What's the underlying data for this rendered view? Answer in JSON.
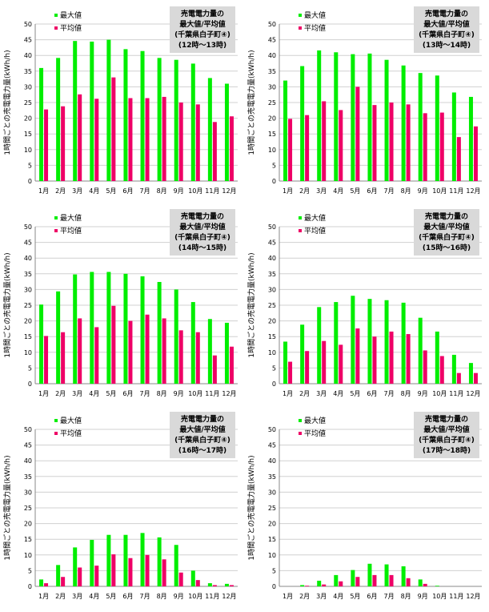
{
  "colors": {
    "max": "#00ee00",
    "avg": "#ee0066",
    "title_box": "#d9d9d9",
    "grid": "#d0d0d0",
    "axis": "#888888"
  },
  "chart_data": [
    {
      "type": "bar",
      "title_lines": [
        "売電電力量の",
        "最大値/平均値",
        "(千葉県白子町④)",
        "(12時～13時)"
      ],
      "ylabel": "1時間ごとの売電電力量(kWh/h)",
      "yticks": [
        "0",
        "5",
        "10",
        "15",
        "20",
        "25",
        "30",
        "35",
        "40",
        "45",
        "50"
      ],
      "ylim": [
        0,
        50
      ],
      "categories": [
        "1月",
        "2月",
        "3月",
        "4月",
        "5月",
        "6月",
        "7月",
        "8月",
        "9月",
        "10月",
        "11月",
        "12月"
      ],
      "series": [
        {
          "name": "最大値",
          "values": [
            36.0,
            39.2,
            44.6,
            44.4,
            45.0,
            42.0,
            41.4,
            39.2,
            38.6,
            37.4,
            32.8,
            31.0
          ]
        },
        {
          "name": "平均値",
          "values": [
            22.8,
            23.8,
            27.6,
            26.2,
            33.0,
            26.4,
            26.4,
            26.8,
            25.0,
            24.4,
            18.8,
            20.6
          ]
        }
      ]
    },
    {
      "type": "bar",
      "title_lines": [
        "売電電力量の",
        "最大値/平均値",
        "(千葉県白子町④)",
        "(13時～14時)"
      ],
      "ylabel": "1時間ごとの売電電力量(kWh/h)",
      "yticks": [
        "0",
        "5",
        "10",
        "15",
        "20",
        "25",
        "30",
        "35",
        "40",
        "45",
        "50"
      ],
      "ylim": [
        0,
        50
      ],
      "categories": [
        "1月",
        "2月",
        "3月",
        "4月",
        "5月",
        "6月",
        "7月",
        "8月",
        "9月",
        "10月",
        "11月",
        "12月"
      ],
      "series": [
        {
          "name": "最大値",
          "values": [
            32.0,
            36.6,
            41.6,
            41.0,
            40.4,
            40.6,
            38.6,
            36.8,
            34.4,
            33.6,
            28.2,
            26.8
          ]
        },
        {
          "name": "平均値",
          "values": [
            19.8,
            21.0,
            25.4,
            22.6,
            30.0,
            24.2,
            25.0,
            24.4,
            21.6,
            21.8,
            14.0,
            17.4
          ]
        }
      ]
    },
    {
      "type": "bar",
      "title_lines": [
        "売電電力量の",
        "最大値/平均値",
        "(千葉県白子町④)",
        "(14時～15時)"
      ],
      "ylabel": "1時間ごとの売電電力量(kWh/h)",
      "yticks": [
        "0",
        "5",
        "10",
        "15",
        "20",
        "25",
        "30",
        "35",
        "40",
        "45",
        "50"
      ],
      "ylim": [
        0,
        50
      ],
      "categories": [
        "1月",
        "2月",
        "3月",
        "4月",
        "5月",
        "6月",
        "7月",
        "8月",
        "9月",
        "10月",
        "11月",
        "12月"
      ],
      "series": [
        {
          "name": "最大値",
          "values": [
            25.2,
            29.4,
            34.8,
            35.6,
            35.6,
            35.0,
            34.2,
            32.4,
            30.0,
            26.0,
            20.6,
            19.4
          ]
        },
        {
          "name": "平均値",
          "values": [
            15.2,
            16.4,
            20.8,
            18.0,
            24.8,
            20.0,
            22.0,
            20.8,
            17.0,
            16.4,
            9.0,
            11.8
          ]
        }
      ]
    },
    {
      "type": "bar",
      "title_lines": [
        "売電電力量の",
        "最大値/平均値",
        "(千葉県白子町④)",
        "(15時～16時)"
      ],
      "ylabel": "1時間ごとの売電電力量(kWh/h)",
      "yticks": [
        "0",
        "5",
        "10",
        "15",
        "20",
        "25",
        "30",
        "35",
        "40",
        "45",
        "50"
      ],
      "ylim": [
        0,
        50
      ],
      "categories": [
        "1月",
        "2月",
        "3月",
        "4月",
        "5月",
        "6月",
        "7月",
        "8月",
        "9月",
        "10月",
        "11月",
        "12月"
      ],
      "series": [
        {
          "name": "最大値",
          "values": [
            13.4,
            18.8,
            24.4,
            26.0,
            28.0,
            27.0,
            26.6,
            25.8,
            21.0,
            16.6,
            9.2,
            6.6
          ]
        },
        {
          "name": "平均値",
          "values": [
            7.0,
            10.4,
            13.6,
            12.4,
            17.6,
            15.0,
            16.6,
            15.8,
            10.6,
            8.8,
            3.4,
            3.4
          ]
        }
      ]
    },
    {
      "type": "bar",
      "title_lines": [
        "売電電力量の",
        "最大値/平均値",
        "(千葉県白子町④)",
        "(16時～17時)"
      ],
      "ylabel": "1時間ごとの売電電力量(kWh/h)",
      "yticks": [
        "0",
        "5",
        "10",
        "15",
        "20",
        "25",
        "30",
        "35",
        "40",
        "45",
        "50"
      ],
      "ylim": [
        0,
        50
      ],
      "categories": [
        "1月",
        "2月",
        "3月",
        "4月",
        "5月",
        "6月",
        "7月",
        "8月",
        "9月",
        "10月",
        "11月",
        "12月"
      ],
      "series": [
        {
          "name": "最大値",
          "values": [
            2.2,
            6.8,
            12.4,
            14.8,
            16.4,
            16.4,
            17.0,
            15.6,
            13.2,
            5.0,
            1.0,
            0.8
          ]
        },
        {
          "name": "平均値",
          "values": [
            1.0,
            3.0,
            6.0,
            6.6,
            10.2,
            9.0,
            10.0,
            8.6,
            4.4,
            2.0,
            0.4,
            0.4
          ]
        }
      ]
    },
    {
      "type": "bar",
      "title_lines": [
        "売電電力量の",
        "最大値/平均値",
        "(千葉県白子町④)",
        "(17時～18時)"
      ],
      "ylabel": "1時間ごとの売電電力量(kWh/h)",
      "yticks": [
        "0",
        "5",
        "10",
        "15",
        "20",
        "25",
        "30",
        "35",
        "40",
        "45",
        "50"
      ],
      "ylim": [
        0,
        50
      ],
      "categories": [
        "1月",
        "2月",
        "3月",
        "4月",
        "5月",
        "6月",
        "7月",
        "8月",
        "9月",
        "10月",
        "11月",
        "12月"
      ],
      "series": [
        {
          "name": "最大値",
          "values": [
            0.0,
            0.4,
            1.8,
            3.6,
            5.2,
            7.2,
            7.0,
            6.4,
            2.2,
            0.2,
            0.0,
            0.0
          ]
        },
        {
          "name": "平均値",
          "values": [
            0.0,
            0.2,
            0.6,
            1.6,
            3.0,
            3.6,
            3.6,
            2.6,
            0.8,
            0.0,
            0.0,
            0.0
          ]
        }
      ]
    }
  ]
}
